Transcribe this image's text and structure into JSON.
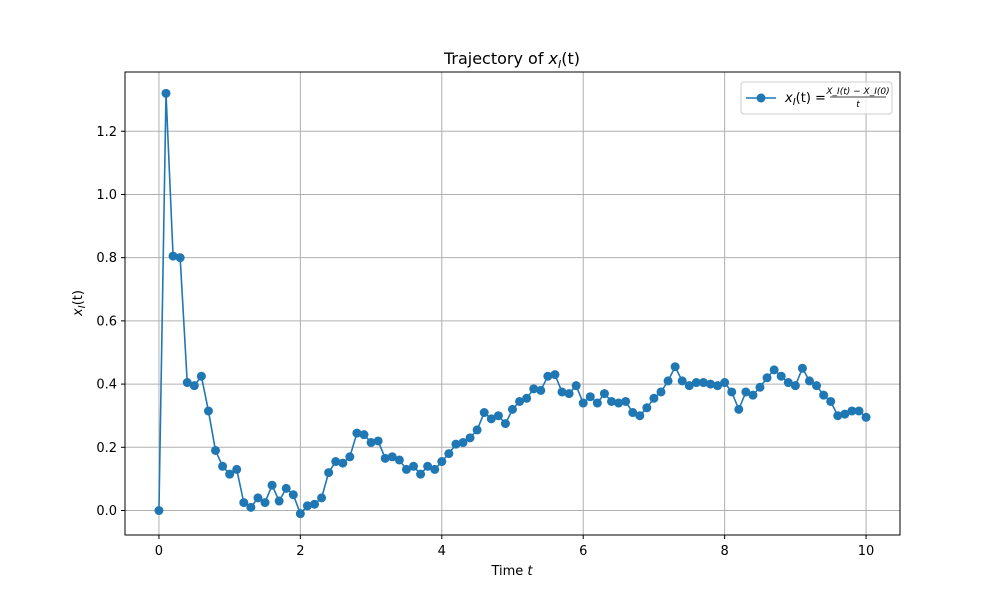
{
  "colors": {
    "series": "#1f77b4",
    "grid": "#b0b0b0",
    "axes": "#000000",
    "background": "#ffffff"
  },
  "chart_data": {
    "type": "line",
    "title": {
      "prefix": "Trajectory of ",
      "var": "x",
      "sub": "I",
      "suffix": "(t)"
    },
    "xlabel": {
      "text": "Time ",
      "var": "t"
    },
    "ylabel": {
      "var": "x",
      "sub": "I",
      "suffix": "(t)"
    },
    "xlim": [
      -0.48,
      10.48
    ],
    "ylim": [
      -0.0775,
      1.3875
    ],
    "x_ticks": [
      0,
      2,
      4,
      6,
      8,
      10
    ],
    "x_tick_labels": [
      "0",
      "2",
      "4",
      "6",
      "8",
      "10"
    ],
    "y_ticks": [
      0.0,
      0.2,
      0.4,
      0.6,
      0.8,
      1.0,
      1.2
    ],
    "y_tick_labels": [
      "0.0",
      "0.2",
      "0.4",
      "0.6",
      "0.8",
      "1.0",
      "1.2"
    ],
    "grid": true,
    "legend_position": "top-right",
    "marker": "circle",
    "series": [
      {
        "name": "x_I(t) = (X_I(t) − X_I(0)) / t",
        "legend_label": {
          "lhs_var": "x",
          "lhs_sub": "I",
          "lhs_suffix": "(t) =",
          "numerator": "X_I(t) − X_I(0)",
          "denominator": "t"
        },
        "x": [
          0.0,
          0.1,
          0.2,
          0.3,
          0.4,
          0.5,
          0.6,
          0.7,
          0.8,
          0.9,
          1.0,
          1.1,
          1.2,
          1.3,
          1.4,
          1.5,
          1.6,
          1.7,
          1.8,
          1.9,
          2.0,
          2.1,
          2.2,
          2.3,
          2.4,
          2.5,
          2.6,
          2.7,
          2.8,
          2.9,
          3.0,
          3.1,
          3.2,
          3.3,
          3.4,
          3.5,
          3.6,
          3.7,
          3.8,
          3.9,
          4.0,
          4.1,
          4.2,
          4.3,
          4.4,
          4.5,
          4.6,
          4.7,
          4.8,
          4.9,
          5.0,
          5.1,
          5.2,
          5.3,
          5.4,
          5.5,
          5.6,
          5.7,
          5.8,
          5.9,
          6.0,
          6.1,
          6.2,
          6.3,
          6.4,
          6.5,
          6.6,
          6.7,
          6.8,
          6.9,
          7.0,
          7.1,
          7.2,
          7.3,
          7.4,
          7.5,
          7.6,
          7.7,
          7.8,
          7.9,
          8.0,
          8.1,
          8.2,
          8.3,
          8.4,
          8.5,
          8.6,
          8.7,
          8.8,
          8.9,
          9.0,
          9.1,
          9.2,
          9.3,
          9.4,
          9.5,
          9.6,
          9.7,
          9.8,
          9.9,
          10.0
        ],
        "y": [
          0.0,
          1.32,
          0.805,
          0.8,
          0.405,
          0.395,
          0.425,
          0.315,
          0.19,
          0.14,
          0.115,
          0.13,
          0.025,
          0.01,
          0.04,
          0.025,
          0.08,
          0.03,
          0.07,
          0.05,
          -0.01,
          0.015,
          0.02,
          0.04,
          0.12,
          0.155,
          0.15,
          0.17,
          0.245,
          0.24,
          0.215,
          0.22,
          0.165,
          0.17,
          0.16,
          0.13,
          0.14,
          0.115,
          0.14,
          0.13,
          0.155,
          0.18,
          0.21,
          0.215,
          0.23,
          0.255,
          0.31,
          0.29,
          0.3,
          0.275,
          0.32,
          0.345,
          0.355,
          0.385,
          0.38,
          0.425,
          0.43,
          0.375,
          0.37,
          0.395,
          0.34,
          0.36,
          0.34,
          0.37,
          0.345,
          0.34,
          0.345,
          0.31,
          0.3,
          0.325,
          0.355,
          0.375,
          0.41,
          0.455,
          0.41,
          0.395,
          0.405,
          0.405,
          0.4,
          0.395,
          0.405,
          0.375,
          0.32,
          0.375,
          0.365,
          0.39,
          0.42,
          0.445,
          0.425,
          0.405,
          0.395,
          0.45,
          0.41,
          0.395,
          0.365,
          0.345,
          0.3,
          0.305,
          0.315,
          0.315,
          0.295
        ]
      }
    ]
  }
}
